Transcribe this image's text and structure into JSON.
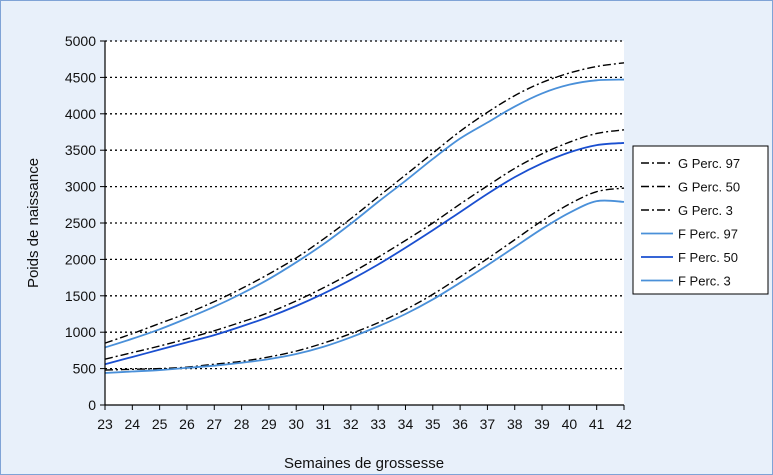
{
  "chart_data": {
    "type": "line",
    "title": "",
    "xlabel": "Semaines de grossesse",
    "ylabel": "Poids de naissance",
    "x": [
      23,
      24,
      25,
      26,
      27,
      28,
      29,
      30,
      31,
      32,
      33,
      34,
      35,
      36,
      37,
      38,
      39,
      40,
      41,
      42
    ],
    "xlim": [
      23,
      42
    ],
    "ylim": [
      0,
      5000
    ],
    "yticks": [
      0,
      500,
      1000,
      1500,
      2000,
      2500,
      3000,
      3500,
      4000,
      4500,
      5000
    ],
    "grid": true,
    "legend_position": "right",
    "series": [
      {
        "name": "G Perc. 97",
        "style": "dash-dot",
        "color": "#000000",
        "values": [
          850,
          980,
          1120,
          1260,
          1420,
          1600,
          1800,
          2020,
          2280,
          2560,
          2860,
          3160,
          3460,
          3760,
          4020,
          4250,
          4430,
          4560,
          4650,
          4700
        ]
      },
      {
        "name": "G Perc. 50",
        "style": "dash-dot",
        "color": "#000000",
        "values": [
          630,
          720,
          810,
          910,
          1020,
          1140,
          1270,
          1430,
          1610,
          1810,
          2030,
          2260,
          2500,
          2760,
          3010,
          3250,
          3450,
          3610,
          3730,
          3780
        ]
      },
      {
        "name": "G Perc. 3",
        "style": "dash-dot",
        "color": "#000000",
        "values": [
          480,
          490,
          500,
          520,
          560,
          600,
          660,
          740,
          850,
          980,
          1130,
          1310,
          1520,
          1760,
          2010,
          2270,
          2530,
          2760,
          2930,
          2980
        ]
      },
      {
        "name": "F Perc. 97",
        "style": "solid",
        "color": "#4a90d9",
        "values": [
          790,
          910,
          1040,
          1190,
          1350,
          1530,
          1730,
          1960,
          2210,
          2490,
          2790,
          3080,
          3380,
          3660,
          3880,
          4100,
          4280,
          4400,
          4460,
          4470
        ]
      },
      {
        "name": "F Perc. 50",
        "style": "solid",
        "color": "#1a4fd0",
        "values": [
          560,
          660,
          760,
          860,
          960,
          1080,
          1210,
          1360,
          1530,
          1720,
          1930,
          2160,
          2400,
          2650,
          2900,
          3130,
          3320,
          3470,
          3570,
          3600
        ]
      },
      {
        "name": "F Perc. 3",
        "style": "solid",
        "color": "#4a90d9",
        "values": [
          440,
          460,
          480,
          510,
          540,
          580,
          630,
          700,
          800,
          930,
          1080,
          1250,
          1450,
          1680,
          1920,
          2170,
          2420,
          2640,
          2800,
          2790
        ]
      }
    ]
  }
}
